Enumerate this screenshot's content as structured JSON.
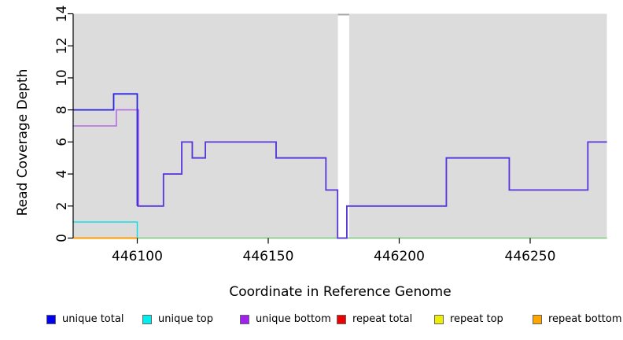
{
  "chart_data": {
    "type": "line",
    "subtype": "step-coverage",
    "title": "",
    "xlabel": "Coordinate in Reference Genome",
    "ylabel": "Read Coverage Depth",
    "xlim": [
      446075.6,
      446279.3
    ],
    "ylim": [
      0,
      14
    ],
    "xticks": [
      446100,
      446150,
      446200,
      446250
    ],
    "yticks": [
      0,
      2,
      4,
      6,
      8,
      10,
      12,
      14
    ],
    "grid": false,
    "plot_bg": "#dcdcdc",
    "axis_color": "#000000",
    "gap_region": {
      "x0": 446176.6,
      "x1": 446180.9,
      "fill": "#ffffff",
      "cap_color": "#a9a9a9"
    },
    "series": [
      {
        "name": "unique top",
        "color": "#00e0e8",
        "width": 1.4,
        "steps": [
          [
            446075.6,
            1
          ],
          [
            446100,
            0
          ]
        ]
      },
      {
        "name": "repeat bottom",
        "color": "#ff9d00",
        "width": 2,
        "steps": [
          [
            446075.6,
            0
          ],
          [
            446100,
            0
          ]
        ]
      },
      {
        "name": "zero baseline (unlabeled green)",
        "color": "#7cc87c",
        "width": 1.4,
        "steps": [
          [
            446100,
            0
          ],
          [
            446279.3,
            0
          ]
        ]
      },
      {
        "name": "unique bottom",
        "color": "#b46be8",
        "width": 1.6,
        "steps": [
          [
            446075.6,
            7
          ],
          [
            446092,
            8
          ],
          [
            446100.5,
            2
          ],
          [
            446110,
            4
          ],
          [
            446117,
            6
          ],
          [
            446121,
            5
          ],
          [
            446126,
            6
          ],
          [
            446153,
            5
          ],
          [
            446172,
            3
          ],
          [
            446176.5,
            0
          ],
          [
            446180,
            2
          ],
          [
            446218,
            5
          ],
          [
            446242,
            3
          ],
          [
            446272,
            6
          ],
          [
            446279.3,
            6
          ]
        ]
      },
      {
        "name": "unique total",
        "color": "#2a22dd",
        "overlap_color": "#5639d8",
        "overlap_from": 446100,
        "width": 1.8,
        "steps": [
          [
            446075.6,
            8
          ],
          [
            446091,
            9
          ],
          [
            446100,
            2
          ],
          [
            446110,
            4
          ],
          [
            446117,
            6
          ],
          [
            446121,
            5
          ],
          [
            446126,
            6
          ],
          [
            446153,
            5
          ],
          [
            446172,
            3
          ],
          [
            446176.5,
            0
          ],
          [
            446180,
            2
          ],
          [
            446218,
            5
          ],
          [
            446242,
            3
          ],
          [
            446272,
            6
          ],
          [
            446279.3,
            6
          ]
        ]
      }
    ]
  },
  "legend": {
    "items": [
      {
        "label": "unique total",
        "color": "#0000ee"
      },
      {
        "label": "unique top",
        "color": "#00eeee"
      },
      {
        "label": "unique bottom",
        "color": "#a020f0"
      },
      {
        "label": "repeat total",
        "color": "#ee0000"
      },
      {
        "label": "repeat top",
        "color": "#eeee00"
      },
      {
        "label": "repeat bottom",
        "color": "#ffa500"
      }
    ]
  }
}
